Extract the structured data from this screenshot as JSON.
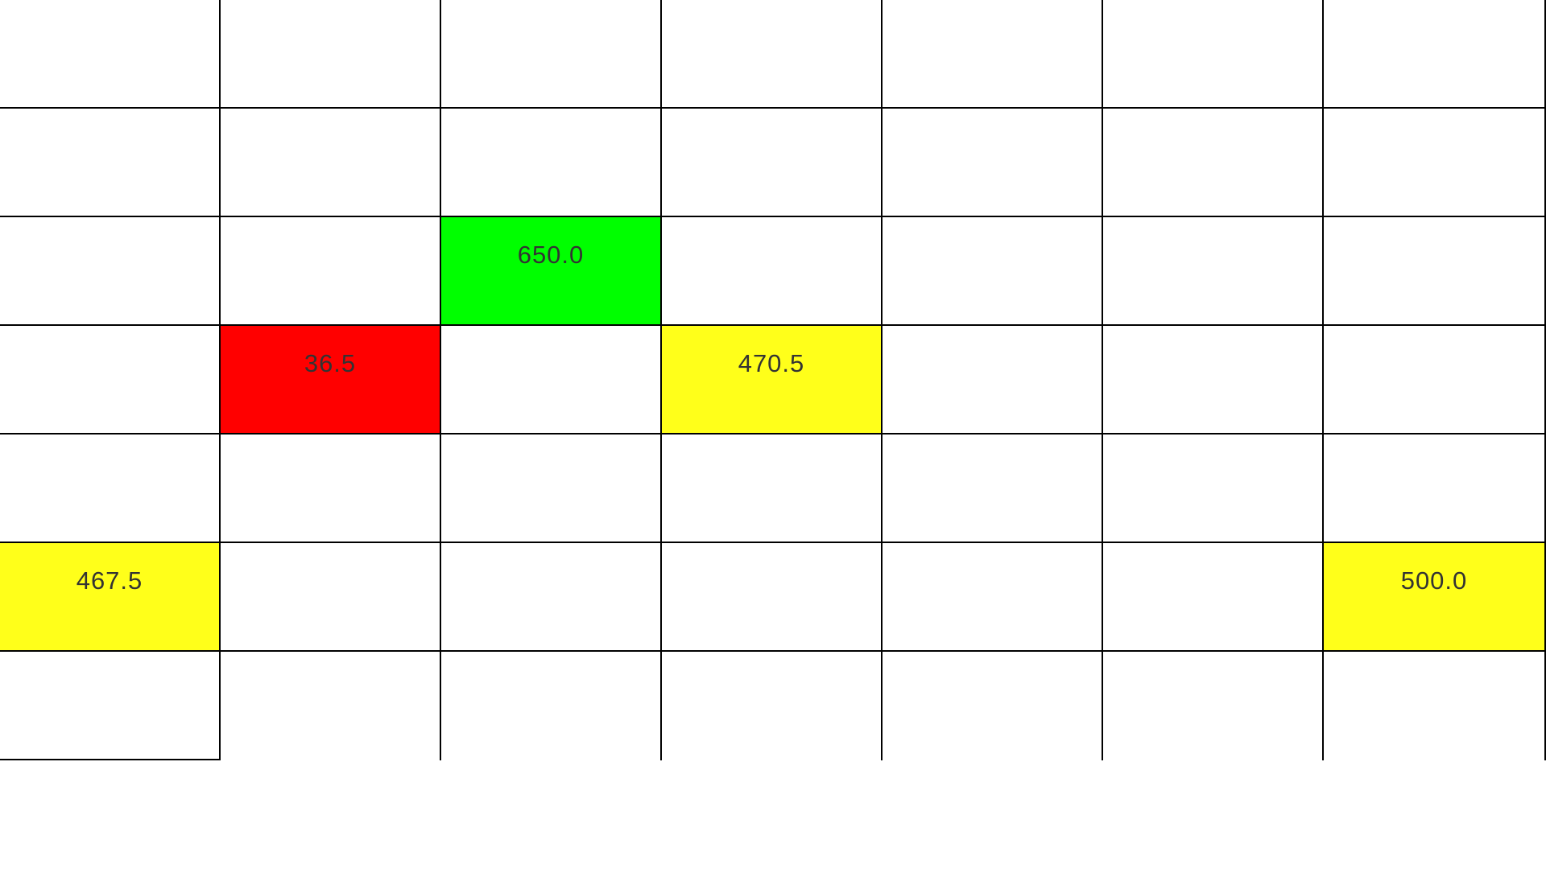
{
  "grid": {
    "rows": 8,
    "cols": 7,
    "colors": {
      "green": "#00ff00",
      "red": "#ff0000",
      "yellow": "#ffff1a",
      "line": "#000000",
      "text": "#333333"
    },
    "cells": [
      {
        "row": 2,
        "col": 4,
        "value": "650.0",
        "fill": "green"
      },
      {
        "row": 3,
        "col": 4,
        "value": "36.5",
        "fill": "red"
      },
      {
        "row": 3,
        "col": 6,
        "value": "470.5",
        "fill": "yellow"
      },
      {
        "row": 5,
        "col": 5,
        "value": "467.5",
        "fill": "yellow"
      },
      {
        "row": 6,
        "col": 4,
        "value": "500.0",
        "fill": "yellow"
      }
    ]
  }
}
